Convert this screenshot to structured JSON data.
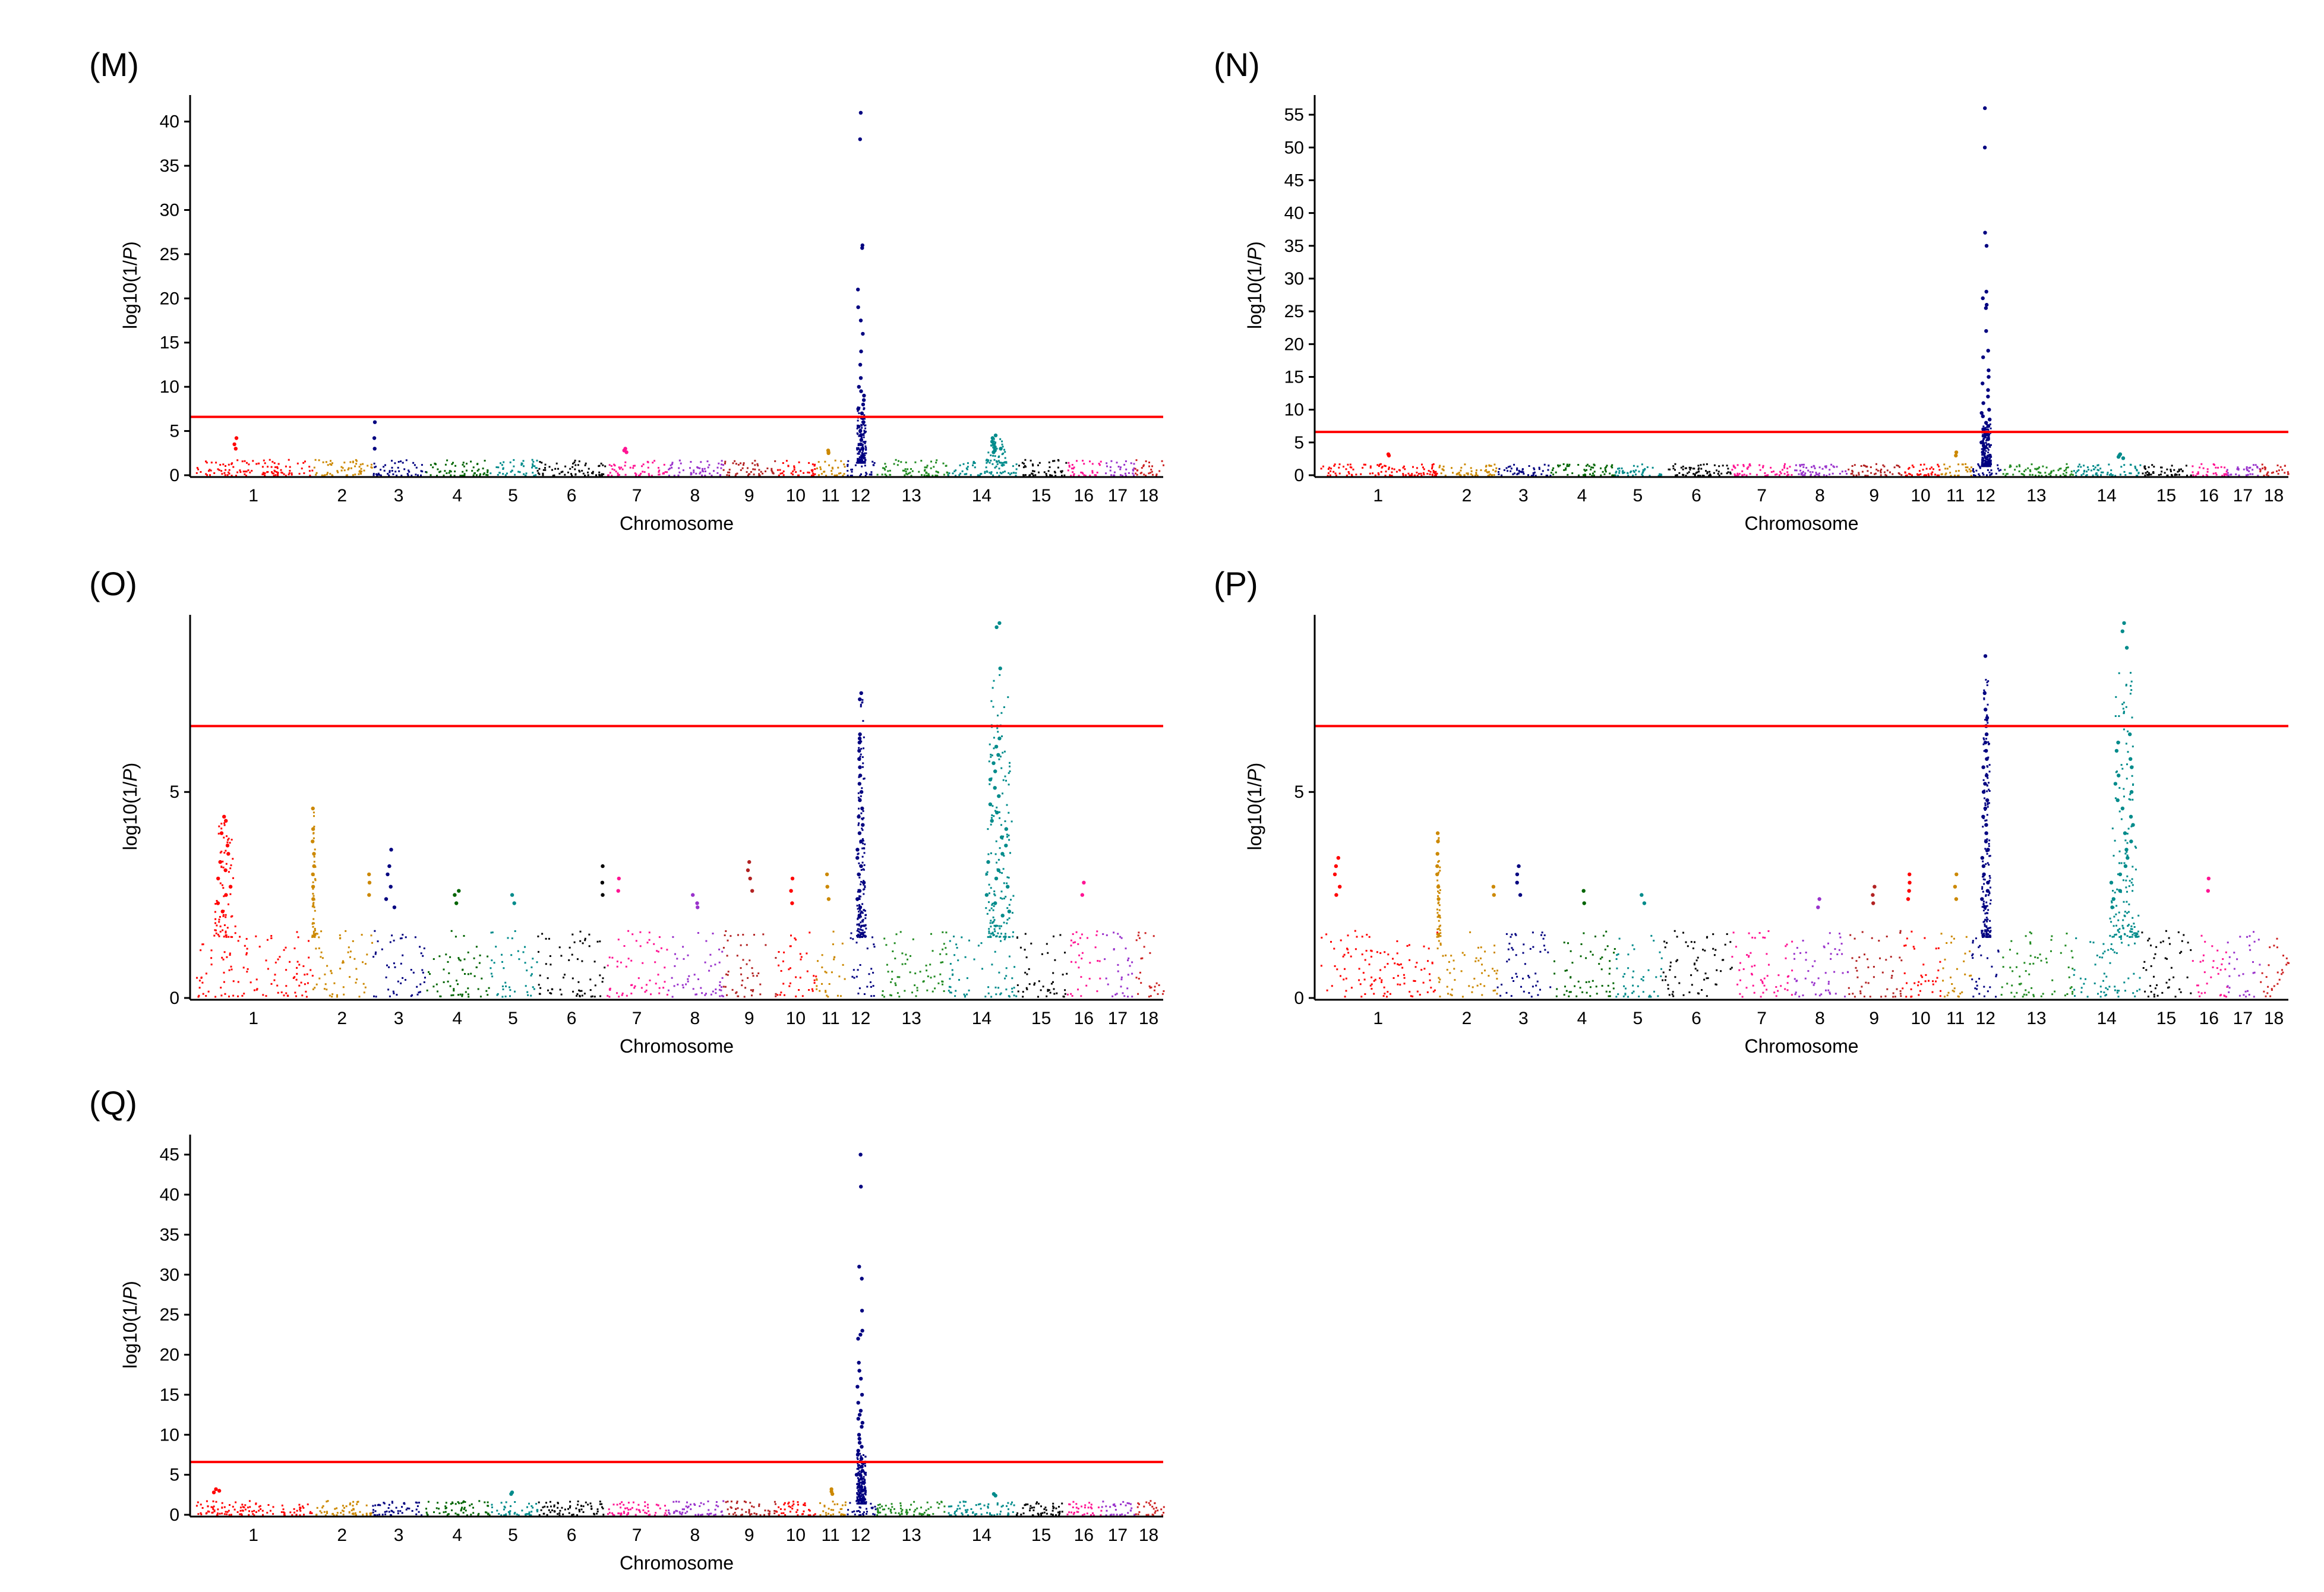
{
  "figure": {
    "xlabel": "Chromosome",
    "ylabel_prefix": "log10(1/",
    "ylabel_italic": "P",
    "ylabel_suffix": ")",
    "threshold_color": "#ff0000",
    "chromosomes": [
      "1",
      "2",
      "3",
      "4",
      "5",
      "6",
      "7",
      "8",
      "9",
      "10",
      "11",
      "12",
      "13",
      "14",
      "15",
      "16",
      "17",
      "18"
    ],
    "chromosome_colors": [
      "#ff0000",
      "#cc8800",
      "#000080",
      "#006400",
      "#008b8b",
      "#000000",
      "#ff1493",
      "#9932cc",
      "#b22222",
      "#ff0000",
      "#cc8800",
      "#000080",
      "#228b22",
      "#008b8b",
      "#000000",
      "#ff1493",
      "#9932cc",
      "#cc2222"
    ]
  },
  "chart_data": [
    {
      "type": "scatter",
      "panel": "(M)",
      "title": "(M)",
      "xlabel": "Chromosome",
      "ylabel": "log10(1/P)",
      "yticks": [
        "0",
        "5",
        "10",
        "15",
        "20",
        "25",
        "30",
        "35",
        "40"
      ],
      "ylim": [
        0,
        43
      ],
      "threshold": 6.6,
      "background_max": 1.8,
      "peaks": [
        {
          "chr": 12,
          "center": 0.5,
          "width": 0.32,
          "values": [
            41,
            38,
            26,
            25.7,
            21,
            19,
            17.5,
            16,
            14,
            12.5,
            11,
            10,
            9.5,
            9,
            8.5,
            8,
            7.5,
            7,
            6.5,
            6,
            5.5,
            5,
            4.5,
            4,
            3.5,
            3
          ]
        },
        {
          "chr": 14,
          "center": 0.7,
          "width": 0.4,
          "values": [
            4.5,
            4.2,
            3.8,
            3.5,
            3.2,
            3.0,
            2.8,
            2.6
          ]
        },
        {
          "chr": 3,
          "center": 0.05,
          "width": 0.05,
          "values": [
            6,
            4.2,
            3
          ]
        },
        {
          "chr": 1,
          "center": 0.35,
          "width": 0.1,
          "values": [
            4.2,
            3.5,
            3
          ]
        },
        {
          "chr": 7,
          "center": 0.3,
          "width": 0.4,
          "values": [
            3,
            2.8,
            2.6
          ]
        },
        {
          "chr": 11,
          "center": 0.4,
          "width": 0.5,
          "values": [
            2.8,
            2.6,
            2.5
          ]
        }
      ]
    },
    {
      "type": "scatter",
      "panel": "(N)",
      "title": "(N)",
      "xlabel": "Chromosome",
      "ylabel": "log10(1/P)",
      "yticks": [
        "0",
        "5",
        "10",
        "15",
        "20",
        "25",
        "30",
        "35",
        "40",
        "45",
        "50",
        "55"
      ],
      "ylim": [
        0,
        58
      ],
      "threshold": 6.6,
      "background_max": 1.8,
      "peaks": [
        {
          "chr": 12,
          "center": 0.5,
          "width": 0.32,
          "values": [
            56,
            50,
            37,
            35,
            28,
            27,
            26,
            25.5,
            22,
            19,
            18,
            16,
            15,
            14,
            13,
            12,
            11,
            10,
            9.5,
            9,
            8.5,
            8,
            7.5,
            7,
            6.5,
            6,
            5.5,
            5,
            4.5,
            4,
            3.5,
            3
          ]
        },
        {
          "chr": 14,
          "center": 0.7,
          "width": 0.4,
          "values": [
            3.2,
            3.0,
            2.8,
            2.6
          ]
        },
        {
          "chr": 1,
          "center": 0.6,
          "width": 0.2,
          "values": [
            3.2,
            3.0
          ]
        },
        {
          "chr": 11,
          "center": 0.5,
          "width": 0.4,
          "values": [
            3.5,
            3.0
          ]
        }
      ]
    },
    {
      "type": "scatter",
      "panel": "(O)",
      "title": "(O)",
      "xlabel": "Chromosome",
      "ylabel": "log10(1/P)",
      "yticks": [
        "0",
        "5"
      ],
      "ylim": [
        0,
        9.3
      ],
      "threshold": 6.6,
      "background_max": 1.6,
      "peaks": [
        {
          "chr": 12,
          "center": 0.5,
          "width": 0.36,
          "values": [
            7.4,
            7.25,
            6.4,
            6.3,
            6.2,
            6.0,
            5.8,
            5.6,
            5.4,
            5.2,
            5.0,
            4.8,
            4.6,
            4.4,
            4.2,
            4.0,
            3.8,
            3.6,
            3.4,
            3.2,
            3.0,
            2.8,
            2.6,
            2.4,
            2.2,
            2.0
          ]
        },
        {
          "chr": 14,
          "center": 0.75,
          "width": 0.5,
          "values": [
            9.1,
            9.0,
            8.0,
            6.3,
            6.1,
            5.9,
            5.7,
            5.5,
            5.3,
            5.1,
            4.9,
            4.7,
            4.5,
            4.3,
            4.1,
            3.9,
            3.7,
            3.5,
            3.3,
            3.1,
            2.9,
            2.7,
            2.5,
            2.3,
            2.1,
            2.0
          ]
        },
        {
          "chr": 1,
          "center": 0.25,
          "width": 0.25,
          "values": [
            4.4,
            4.3,
            4.0,
            3.7,
            3.5,
            3.3,
            3.1,
            2.9,
            2.7,
            2.5,
            2.3,
            2.1
          ]
        },
        {
          "chr": 2,
          "center": 0.02,
          "width": 0.08,
          "values": [
            4.6,
            4.1,
            3.8,
            3.5,
            3.2,
            3.0,
            2.7,
            2.4
          ]
        },
        {
          "chr": 3,
          "center": 0.35,
          "width": 0.4,
          "values": [
            3.6,
            3.2,
            3.0,
            2.7,
            2.4,
            2.2
          ]
        },
        {
          "chr": 2,
          "center": 0.95,
          "width": 0.1,
          "values": [
            3.0,
            2.8,
            2.5
          ]
        },
        {
          "chr": 9,
          "center": 0.5,
          "width": 0.4,
          "values": [
            3.3,
            3.1,
            2.9,
            2.6
          ]
        },
        {
          "chr": 10,
          "center": 0.4,
          "width": 0.4,
          "values": [
            2.9,
            2.6,
            2.3
          ]
        },
        {
          "chr": 11,
          "center": 0.4,
          "width": 0.4,
          "values": [
            3.0,
            2.7,
            2.4
          ]
        },
        {
          "chr": 6,
          "center": 0.95,
          "width": 0.1,
          "values": [
            3.2,
            2.8,
            2.5
          ]
        },
        {
          "chr": 7,
          "center": 0.2,
          "width": 0.3,
          "values": [
            2.9,
            2.6
          ]
        },
        {
          "chr": 16,
          "center": 0.5,
          "width": 0.4,
          "values": [
            2.8,
            2.5
          ]
        },
        {
          "chr": 4,
          "center": 0.5,
          "width": 0.5,
          "values": [
            2.6,
            2.5,
            2.3
          ]
        },
        {
          "chr": 5,
          "center": 0.5,
          "width": 0.5,
          "values": [
            2.5,
            2.3
          ]
        },
        {
          "chr": 8,
          "center": 0.5,
          "width": 0.6,
          "values": [
            2.5,
            2.3,
            2.2
          ]
        }
      ]
    },
    {
      "type": "scatter",
      "panel": "(P)",
      "title": "(P)",
      "xlabel": "Chromosome",
      "ylabel": "log10(1/P)",
      "yticks": [
        "0",
        "5"
      ],
      "ylim": [
        0,
        9.3
      ],
      "threshold": 6.6,
      "background_max": 1.6,
      "peaks": [
        {
          "chr": 12,
          "center": 0.5,
          "width": 0.36,
          "values": [
            8.3,
            7.4,
            7.0,
            6.8,
            6.6,
            6.4,
            6.2,
            6.0,
            5.8,
            5.6,
            5.4,
            5.2,
            5.0,
            4.8,
            4.6,
            4.4,
            4.2,
            4.0,
            3.8,
            3.6,
            3.4,
            3.2,
            3.0,
            2.8,
            2.6,
            2.4,
            2.2
          ]
        },
        {
          "chr": 14,
          "center": 0.75,
          "width": 0.5,
          "values": [
            9.1,
            8.9,
            8.5,
            6.4,
            6.2,
            6.0,
            5.8,
            5.6,
            5.4,
            5.2,
            5.0,
            4.8,
            4.6,
            4.4,
            4.2,
            4.0,
            3.8,
            3.6,
            3.4,
            3.2,
            3.0,
            2.8,
            2.6,
            2.4,
            2.2
          ]
        },
        {
          "chr": 2,
          "center": 0.02,
          "width": 0.08,
          "values": [
            4.0,
            3.8,
            3.5,
            3.2,
            3.0,
            2.7,
            2.4
          ]
        },
        {
          "chr": 1,
          "center": 0.15,
          "width": 0.2,
          "values": [
            3.4,
            3.2,
            3.0,
            2.7,
            2.5
          ]
        },
        {
          "chr": 3,
          "center": 0.4,
          "width": 0.3,
          "values": [
            3.2,
            3.0,
            2.8,
            2.5
          ]
        },
        {
          "chr": 10,
          "center": 0.2,
          "width": 0.4,
          "values": [
            3.0,
            2.8,
            2.6,
            2.4
          ]
        },
        {
          "chr": 11,
          "center": 0.5,
          "width": 0.4,
          "values": [
            3.0,
            2.7,
            2.4
          ]
        },
        {
          "chr": 9,
          "center": 0.5,
          "width": 0.4,
          "values": [
            2.7,
            2.5,
            2.3
          ]
        },
        {
          "chr": 16,
          "center": 0.5,
          "width": 0.4,
          "values": [
            2.9,
            2.6
          ]
        },
        {
          "chr": 2,
          "center": 0.95,
          "width": 0.1,
          "values": [
            2.7,
            2.5
          ]
        },
        {
          "chr": 4,
          "center": 0.5,
          "width": 0.5,
          "values": [
            2.6,
            2.3
          ]
        },
        {
          "chr": 5,
          "center": 0.6,
          "width": 0.4,
          "values": [
            2.5,
            2.3
          ]
        },
        {
          "chr": 8,
          "center": 0.5,
          "width": 0.6,
          "values": [
            2.4,
            2.2
          ]
        }
      ]
    },
    {
      "type": "scatter",
      "panel": "(Q)",
      "title": "(Q)",
      "xlabel": "Chromosome",
      "ylabel": "log10(1/P)",
      "yticks": [
        "0",
        "5",
        "10",
        "15",
        "20",
        "25",
        "30",
        "35",
        "40",
        "45"
      ],
      "ylim": [
        0,
        47.5
      ],
      "threshold": 6.6,
      "background_max": 1.8,
      "peaks": [
        {
          "chr": 12,
          "center": 0.5,
          "width": 0.32,
          "values": [
            45,
            41,
            31,
            29.5,
            25.5,
            23,
            22.5,
            22,
            19,
            18,
            17,
            16,
            15,
            14,
            13,
            12.5,
            12,
            11.5,
            11,
            10,
            9.5,
            9,
            8.5,
            8,
            7.5,
            7,
            6.5,
            6,
            5.5,
            5,
            4.5,
            4,
            3.5,
            3
          ]
        },
        {
          "chr": 1,
          "center": 0.2,
          "width": 0.3,
          "values": [
            3.2,
            3.0,
            2.8
          ]
        },
        {
          "chr": 11,
          "center": 0.5,
          "width": 0.4,
          "values": [
            3.2,
            2.9,
            2.6
          ]
        },
        {
          "chr": 5,
          "center": 0.5,
          "width": 0.4,
          "values": [
            2.8,
            2.6
          ]
        },
        {
          "chr": 14,
          "center": 0.7,
          "width": 0.4,
          "values": [
            2.6,
            2.4
          ]
        }
      ]
    }
  ]
}
